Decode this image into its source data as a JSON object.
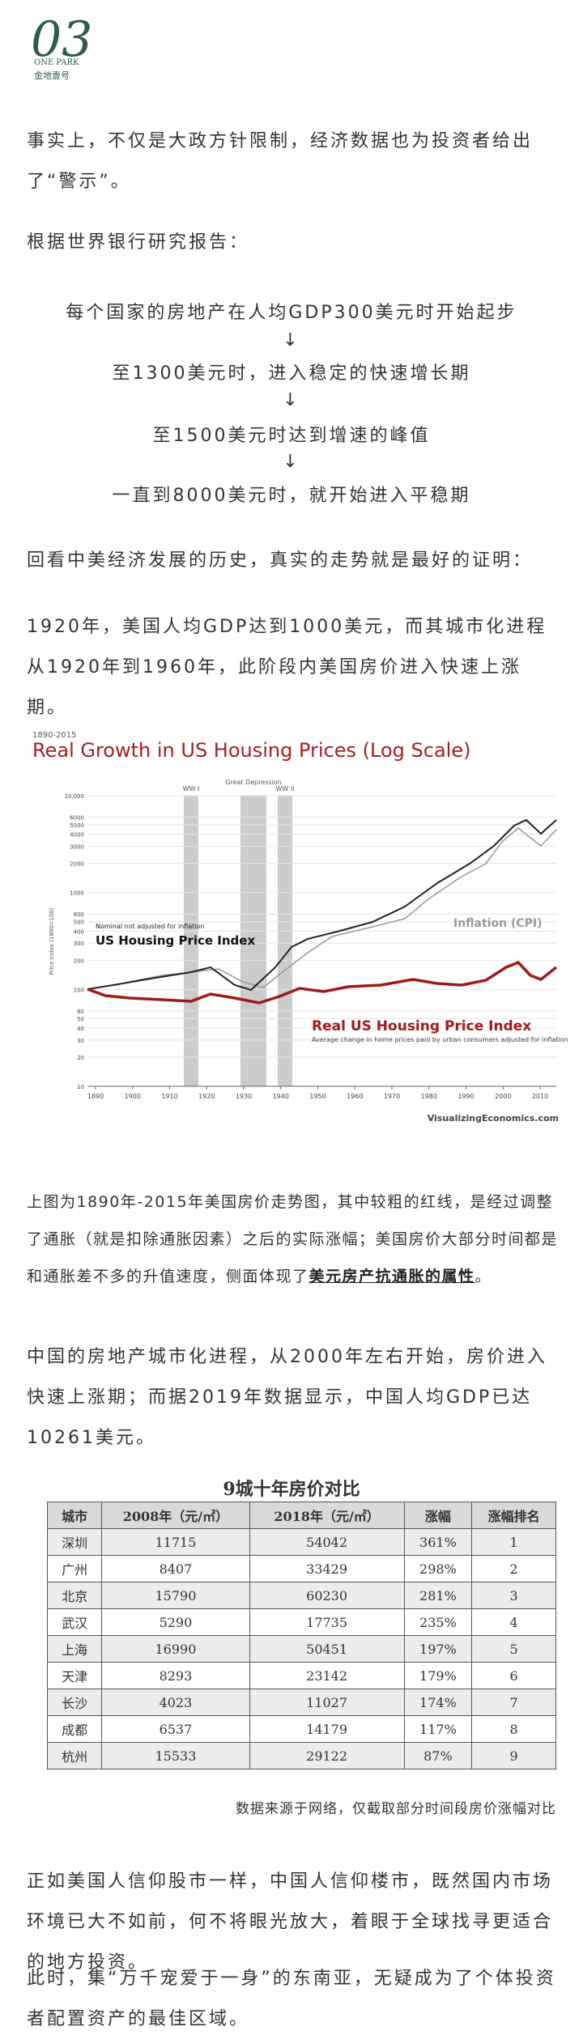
{
  "logo": {
    "number": "03",
    "brand": "ONE PARK",
    "name": "金地壹号"
  },
  "paragraphs": [
    "事实上，不仅是大政方针限制，经济数据也为投资者给出了“警示”。",
    "根据世界银行研究报告："
  ],
  "stages": [
    "每个国家的房地产在人均GDP300美元时开始起步",
    "↓",
    "至1300美元时，进入稳定的快速增长期",
    "↓",
    "至1500美元时达到增速的峰值",
    "↓",
    "一直到8000美元时，就开始进入平稳期"
  ],
  "paragraphs2": [
    "回看中美经济发展的历史，真实的走势就是最好的证明：",
    "1920年，美国人均GDP达到1000美元，而其城市化进程从1920年到1960年，此阶段内美国房价进入快速上涨期。"
  ],
  "chart": {
    "subtitle": "1890-2015",
    "title": "Real Growth in US Housing Prices (Log Scale)",
    "nominal_note": "Nominal not adjusted for inflation",
    "nominal_label": "US Housing Price Index",
    "cpi_label": "Inflation (CPI)",
    "real_label": "Real US Housing Price Index",
    "real_note": "Average change in home prices paid by urban consumers adjusted for inflation",
    "events": [
      "WW I",
      "Great Depression",
      "WW II"
    ],
    "y_axis": "Price Index (1890=100)",
    "credit": "VisualizingEconomics.com",
    "yticks": [
      10,
      20,
      30,
      40,
      50,
      60,
      100,
      200,
      300,
      400,
      500,
      600,
      1000,
      2000,
      3000,
      4000,
      5000,
      6000,
      {
        "value": 10000,
        "label": "10,000"
      }
    ],
    "xticks": [
      1890,
      1900,
      1910,
      1920,
      1930,
      1940,
      1950,
      1960,
      1970,
      1980,
      1990,
      2000,
      2010
    ]
  },
  "caption": {
    "text": "上图为1890年-2015年美国房价走势图，其中较粗的红线，是经过调整了通胀（就是扣除通胀因素）之后的实际涨幅；美国房价大部分时间都是和通胀差不多的升值速度，侧面体现了",
    "highlight": "美元房产抗通胀的属性",
    "end": "。"
  },
  "paragraph3": "中国的房地产城市化进程，从2000年左右开始，房价进入快速上涨期；而据2019年数据显示，中国人均GDP已达10261美元。",
  "table": {
    "title": "9城十年房价对比",
    "header": [
      "城市",
      "2008年（元/㎡）",
      "2018年（元/㎡）",
      "涨幅",
      "涨幅排名"
    ],
    "rows": [
      [
        "深圳",
        "11715",
        "54042",
        "361%",
        "1"
      ],
      [
        "广州",
        "8407",
        "33429",
        "298%",
        "2"
      ],
      [
        "北京",
        "15790",
        "60230",
        "281%",
        "3"
      ],
      [
        "武汉",
        "5290",
        "17735",
        "235%",
        "4"
      ],
      [
        "上海",
        "16990",
        "50451",
        "197%",
        "5"
      ],
      [
        "天津",
        "8293",
        "23142",
        "179%",
        "6"
      ],
      [
        "长沙",
        "4023",
        "11027",
        "174%",
        "7"
      ],
      [
        "成都",
        "6537",
        "14179",
        "117%",
        "8"
      ],
      [
        "杭州",
        "15533",
        "29122",
        "87%",
        "9"
      ]
    ],
    "source": "数据来源于网络，仅截取部分时间段房价涨幅对比"
  },
  "paragraphs4": [
    "正如美国人信仰股市一样，中国人信仰楼市，既然国内市场环境已大不如前，何不将眼光放大，着眼于全球找寻更适合的地方投资。",
    "此时，集“万千宠爱于一身”的东南亚，无疑成为了个体投资者配置资产的最佳区域。"
  ]
}
